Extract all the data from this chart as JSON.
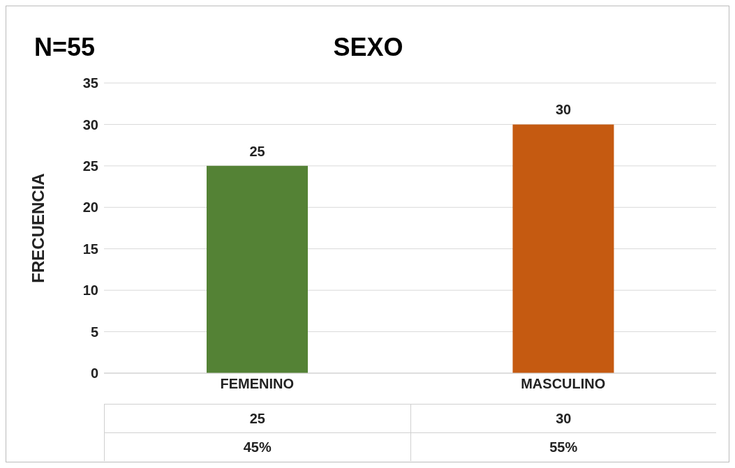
{
  "chart_data": {
    "type": "bar",
    "title": "SEXO",
    "ylabel": "FRECUENCIA",
    "categories": [
      "FEMENINO",
      "MASCULINO"
    ],
    "values": [
      25,
      30
    ],
    "value_labels": [
      "25",
      "30"
    ],
    "colors": [
      "#548235",
      "#c55a11"
    ],
    "ylim": [
      0,
      35
    ],
    "yticks": [
      0,
      5,
      10,
      15,
      20,
      25,
      30,
      35
    ],
    "grid": "y",
    "legend": false,
    "annotations": [
      "N=55",
      "25",
      "30",
      "45%",
      "55%"
    ]
  }
}
